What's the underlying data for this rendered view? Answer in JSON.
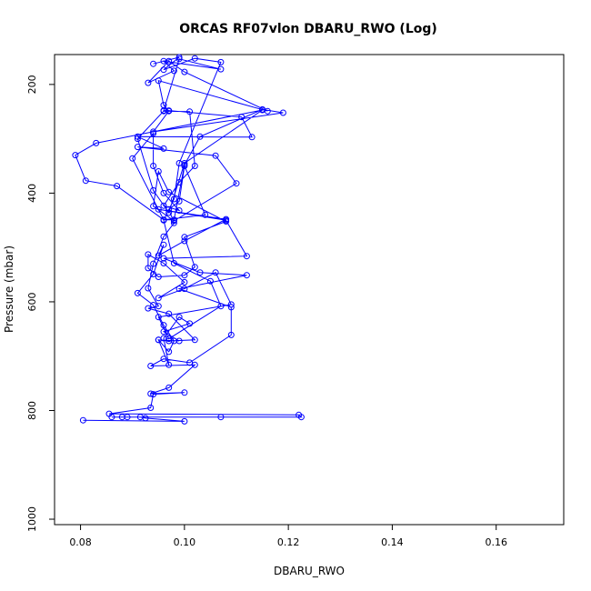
{
  "chart_data": {
    "type": "line",
    "title": "ORCAS RF07vlon DBARU_RWO (Log)",
    "xlabel": "DBARU_RWO",
    "ylabel": "Pressure (mbar)",
    "xlim": [
      0.075,
      0.173
    ],
    "ylim": [
      1010,
      145
    ],
    "y_inverted": true,
    "grid": false,
    "markers": "open-circle",
    "color": "#0000ff",
    "x_ticks": [
      0.08,
      0.1,
      0.12,
      0.14,
      0.16
    ],
    "x_tick_labels": [
      "0.08",
      "0.10",
      "0.12",
      "0.14",
      "0.16"
    ],
    "y_ticks": [
      200,
      400,
      600,
      800,
      1000
    ],
    "y_tick_labels": [
      "200",
      "400",
      "600",
      "800",
      "1000"
    ],
    "series": [
      {
        "points": [
          [
            0.0805,
            818
          ],
          [
            0.1,
            820
          ],
          [
            0.0925,
            814
          ],
          [
            0.0915,
            812
          ],
          [
            0.089,
            812
          ],
          [
            0.088,
            812
          ],
          [
            0.086,
            812
          ],
          [
            0.107,
            812
          ],
          [
            0.1225,
            812
          ],
          [
            0.122,
            808
          ],
          [
            0.0855,
            806
          ],
          [
            0.0935,
            795
          ],
          [
            0.094,
            770
          ],
          [
            0.1,
            767
          ],
          [
            0.0935,
            769
          ],
          [
            0.097,
            758
          ],
          [
            0.102,
            716
          ],
          [
            0.0935,
            718
          ],
          [
            0.096,
            705
          ],
          [
            0.101,
            712
          ],
          [
            0.109,
            661
          ],
          [
            0.109,
            610
          ],
          [
            0.099,
            576
          ],
          [
            0.112,
            551
          ],
          [
            0.103,
            546
          ],
          [
            0.096,
            520
          ],
          [
            0.112,
            516
          ],
          [
            0.108,
            450
          ],
          [
            0.095,
            430
          ],
          [
            0.108,
            448
          ],
          [
            0.1,
            488
          ],
          [
            0.095,
            515
          ],
          [
            0.096,
            495
          ],
          [
            0.094,
            549
          ],
          [
            0.091,
            584
          ],
          [
            0.094,
            606
          ],
          [
            0.096,
            643
          ],
          [
            0.098,
            672
          ],
          [
            0.097,
            692
          ],
          [
            0.095,
            670
          ],
          [
            0.099,
            672
          ],
          [
            0.096,
            655
          ],
          [
            0.101,
            640
          ],
          [
            0.099,
            628
          ],
          [
            0.096,
            667
          ],
          [
            0.097,
            716
          ],
          [
            0.095,
            670
          ],
          [
            0.097,
            672
          ],
          [
            0.102,
            670
          ],
          [
            0.097,
            622
          ],
          [
            0.093,
            612
          ],
          [
            0.095,
            608
          ],
          [
            0.093,
            575
          ],
          [
            0.094,
            530
          ],
          [
            0.096,
            480
          ],
          [
            0.098,
            455
          ],
          [
            0.097,
            430
          ],
          [
            0.099,
            415
          ],
          [
            0.1,
            350
          ],
          [
            0.104,
            440
          ],
          [
            0.096,
            449
          ],
          [
            0.087,
            387
          ],
          [
            0.081,
            377
          ],
          [
            0.079,
            330
          ],
          [
            0.083,
            308
          ],
          [
            0.115,
            247
          ],
          [
            0.1,
            345
          ],
          [
            0.097,
            436
          ],
          [
            0.094,
            395
          ],
          [
            0.091,
            300
          ],
          [
            0.096,
            249
          ],
          [
            0.101,
            250
          ],
          [
            0.102,
            350
          ],
          [
            0.099,
            380
          ],
          [
            0.096,
            423
          ],
          [
            0.099,
            432
          ],
          [
            0.096,
            400
          ],
          [
            0.094,
            350
          ],
          [
            0.094,
            290
          ],
          [
            0.09,
            336
          ],
          [
            0.096,
            449
          ],
          [
            0.098,
            449
          ],
          [
            0.1,
            348
          ],
          [
            0.103,
            296
          ],
          [
            0.115,
            246
          ],
          [
            0.119,
            252
          ],
          [
            0.094,
            287
          ],
          [
            0.097,
            249
          ],
          [
            0.096,
            238
          ],
          [
            0.095,
            193
          ],
          [
            0.116,
            249
          ],
          [
            0.1,
            177
          ],
          [
            0.097,
            157
          ],
          [
            0.093,
            197
          ],
          [
            0.098,
            175
          ],
          [
            0.096,
            157
          ],
          [
            0.107,
            172
          ],
          [
            0.099,
            153
          ],
          [
            0.096,
            248
          ],
          [
            0.097,
            248
          ],
          [
            0.111,
            260
          ],
          [
            0.113,
            297
          ],
          [
            0.091,
            296
          ],
          [
            0.096,
            318
          ],
          [
            0.091,
            315
          ],
          [
            0.106,
            331
          ],
          [
            0.11,
            382
          ],
          [
            0.098,
            451
          ],
          [
            0.094,
            424
          ],
          [
            0.095,
            360
          ],
          [
            0.097,
            398
          ],
          [
            0.108,
            452
          ],
          [
            0.1,
            481
          ],
          [
            0.102,
            536
          ],
          [
            0.1,
            551
          ],
          [
            0.095,
            554
          ],
          [
            0.093,
            538
          ],
          [
            0.093,
            513
          ],
          [
            0.096,
            529
          ],
          [
            0.1,
            564
          ],
          [
            0.095,
            593
          ],
          [
            0.1,
            576
          ],
          [
            0.106,
            546
          ],
          [
            0.109,
            605
          ],
          [
            0.095,
            628
          ],
          [
            0.097,
            668
          ],
          [
            0.107,
            608
          ],
          [
            0.105,
            562
          ],
          [
            0.098,
            529
          ],
          [
            0.096,
            450
          ],
          [
            0.098,
            411
          ],
          [
            0.099,
            345
          ],
          [
            0.107,
            159
          ],
          [
            0.102,
            152
          ],
          [
            0.096,
            173
          ],
          [
            0.099,
            150
          ],
          [
            0.094,
            162
          ]
        ]
      }
    ]
  }
}
